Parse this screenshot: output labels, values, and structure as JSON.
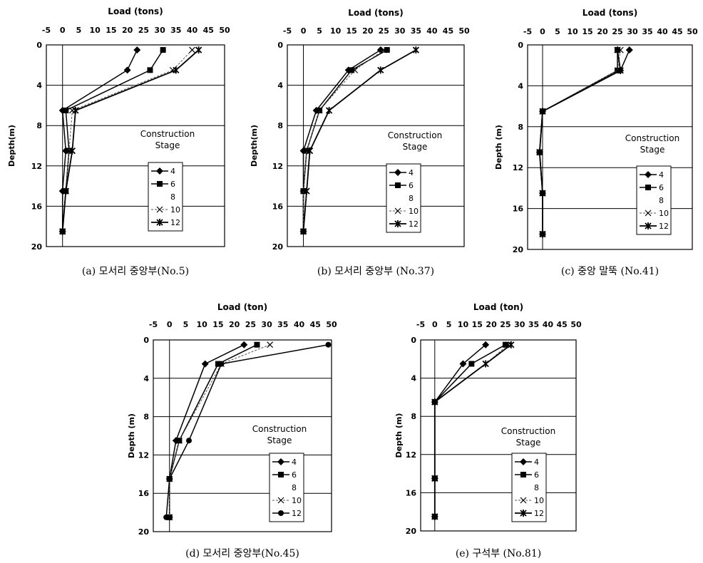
{
  "chart_data": [
    {
      "type": "line",
      "title": "Load (tons)",
      "xlabel": "Load (tons)",
      "ylabel": "Depth(m)",
      "caption": "(a) 모서리 중앙부(No.5)",
      "xlim": [
        -5,
        50
      ],
      "ylim": [
        0,
        20
      ],
      "y_inverted": true,
      "x_ticks": [
        -5,
        0,
        5,
        10,
        15,
        20,
        25,
        30,
        35,
        40,
        45,
        50
      ],
      "y_ticks": [
        0,
        4,
        8,
        12,
        16,
        20
      ],
      "grid": "horizontal",
      "legend_title": [
        "Construction",
        "Stage"
      ],
      "series": [
        {
          "name": "4",
          "marker": "diamond",
          "points": [
            [
              23,
              0.5
            ],
            [
              20,
              2.5
            ],
            [
              0,
              6.5
            ],
            [
              1,
              10.5
            ],
            [
              0,
              14.5
            ],
            [
              0,
              18.5
            ]
          ]
        },
        {
          "name": "6",
          "marker": "square",
          "points": [
            [
              31,
              0.5
            ],
            [
              27,
              2.5
            ],
            [
              1,
              6.5
            ],
            [
              2,
              10.5
            ],
            [
              1,
              14.5
            ],
            [
              0,
              18.5
            ]
          ]
        },
        {
          "name": "8",
          "marker": "none",
          "points": []
        },
        {
          "name": "10",
          "marker": "x",
          "points": [
            [
              40,
              0.5
            ],
            [
              34,
              2.5
            ],
            [
              3,
              6.5
            ],
            [
              2,
              10.5
            ],
            [
              1,
              14.5
            ],
            [
              0,
              18.5
            ]
          ]
        },
        {
          "name": "12",
          "marker": "star",
          "points": [
            [
              42,
              0.5
            ],
            [
              35,
              2.5
            ],
            [
              4,
              6.5
            ],
            [
              3,
              10.5
            ],
            [
              1,
              14.5
            ],
            [
              0,
              18.5
            ]
          ]
        }
      ]
    },
    {
      "type": "line",
      "title": "Load (tons)",
      "xlabel": "Load (tons)",
      "ylabel": "Depth(m)",
      "caption": "(b) 모서리 중앙부 (No.37)",
      "xlim": [
        -5,
        50
      ],
      "ylim": [
        0,
        20
      ],
      "y_inverted": true,
      "x_ticks": [
        -5,
        0,
        5,
        10,
        15,
        20,
        25,
        30,
        35,
        40,
        45,
        50
      ],
      "y_ticks": [
        0,
        4,
        8,
        12,
        16,
        20
      ],
      "grid": "horizontal",
      "legend_title": [
        "Construction",
        "Stage"
      ],
      "series": [
        {
          "name": "4",
          "marker": "diamond",
          "points": [
            [
              24,
              0.5
            ],
            [
              14,
              2.5
            ],
            [
              4,
              6.5
            ],
            [
              0,
              10.5
            ],
            [
              0,
              14.5
            ],
            [
              0,
              18.5
            ]
          ]
        },
        {
          "name": "6",
          "marker": "square",
          "points": [
            [
              26,
              0.5
            ],
            [
              15,
              2.5
            ],
            [
              5,
              6.5
            ],
            [
              1,
              10.5
            ],
            [
              0,
              14.5
            ],
            [
              0,
              18.5
            ]
          ]
        },
        {
          "name": "8",
          "marker": "none",
          "points": []
        },
        {
          "name": "10",
          "marker": "x",
          "points": [
            [
              25,
              0.5
            ],
            [
              16,
              2.5
            ],
            [
              5,
              6.5
            ],
            [
              1,
              10.5
            ],
            [
              0,
              14.5
            ],
            [
              0,
              18.5
            ]
          ]
        },
        {
          "name": "12",
          "marker": "star",
          "points": [
            [
              35,
              0.5
            ],
            [
              24,
              2.5
            ],
            [
              8,
              6.5
            ],
            [
              2,
              10.5
            ],
            [
              1,
              14.5
            ],
            [
              0,
              18.5
            ]
          ]
        }
      ]
    },
    {
      "type": "line",
      "title": "Load (tons)",
      "xlabel": "Load (tons)",
      "ylabel": "Depth (m)",
      "caption": "(c) 중앙 말뚝 (No.41)",
      "xlim": [
        -5,
        50
      ],
      "ylim": [
        0,
        20
      ],
      "y_inverted": true,
      "x_ticks": [
        -5,
        0,
        5,
        10,
        15,
        20,
        25,
        30,
        35,
        40,
        45,
        50
      ],
      "y_ticks": [
        0,
        4,
        8,
        12,
        16,
        20
      ],
      "grid": "horizontal",
      "legend_title": [
        "Construction",
        "Stage"
      ],
      "series": [
        {
          "name": "4",
          "marker": "diamond",
          "points": [
            [
              29,
              0.5
            ],
            [
              26,
              2.5
            ],
            [
              0,
              6.5
            ],
            [
              -1,
              10.5
            ],
            [
              0,
              14.5
            ],
            [
              0,
              18.5
            ]
          ]
        },
        {
          "name": "6",
          "marker": "square",
          "points": [
            [
              25,
              0.5
            ],
            [
              25,
              2.5
            ],
            [
              0,
              6.5
            ],
            [
              -1,
              10.5
            ],
            [
              0,
              14.5
            ],
            [
              0,
              18.5
            ]
          ]
        },
        {
          "name": "8",
          "marker": "none",
          "points": []
        },
        {
          "name": "10",
          "marker": "x",
          "points": [
            [
              26,
              0.5
            ],
            [
              25,
              2.5
            ],
            [
              0,
              6.5
            ],
            [
              -1,
              10.5
            ],
            [
              0,
              14.5
            ],
            [
              0,
              18.5
            ]
          ]
        },
        {
          "name": "12",
          "marker": "star",
          "points": [
            [
              25,
              0.5
            ],
            [
              26,
              2.5
            ],
            [
              0,
              6.5
            ],
            [
              -1,
              10.5
            ],
            [
              0,
              14.5
            ],
            [
              0,
              18.5
            ]
          ]
        }
      ]
    },
    {
      "type": "line",
      "title": "Load (ton)",
      "xlabel": "Load (ton)",
      "ylabel": "Depth (m)",
      "caption": "(d) 모서리 중앙부(No.45)",
      "xlim": [
        -5,
        50
      ],
      "ylim": [
        0,
        20
      ],
      "y_inverted": true,
      "x_ticks": [
        -5,
        0,
        5,
        10,
        15,
        20,
        25,
        30,
        35,
        40,
        45,
        50
      ],
      "y_ticks": [
        0,
        4,
        8,
        12,
        16,
        20
      ],
      "grid": "horizontal",
      "legend_title": [
        "Construction",
        "Stage"
      ],
      "series": [
        {
          "name": "4",
          "marker": "diamond",
          "points": [
            [
              23,
              0.5
            ],
            [
              11,
              2.5
            ],
            [
              2,
              10.5
            ],
            [
              0,
              14.5
            ],
            [
              0,
              18.5
            ]
          ]
        },
        {
          "name": "6",
          "marker": "square",
          "points": [
            [
              27,
              0.5
            ],
            [
              15,
              2.5
            ],
            [
              3,
              10.5
            ],
            [
              0,
              14.5
            ],
            [
              0,
              18.5
            ]
          ]
        },
        {
          "name": "8",
          "marker": "none",
          "points": []
        },
        {
          "name": "10",
          "marker": "x",
          "points": [
            [
              31,
              0.5
            ],
            [
              16,
              2.5
            ],
            [
              3,
              10.5
            ],
            [
              0,
              14.5
            ],
            [
              0,
              18.5
            ]
          ]
        },
        {
          "name": "12",
          "marker": "circle",
          "points": [
            [
              49,
              0.5
            ],
            [
              16,
              2.5
            ],
            [
              6,
              10.5
            ],
            [
              0,
              14.5
            ],
            [
              -1,
              18.5
            ]
          ]
        }
      ]
    },
    {
      "type": "line",
      "title": "Load (ton)",
      "xlabel": "Load (ton)",
      "ylabel": "Depth (m)",
      "caption": "(e) 구석부 (No.81)",
      "xlim": [
        -5,
        50
      ],
      "ylim": [
        0,
        20
      ],
      "y_inverted": true,
      "x_ticks": [
        -5,
        0,
        5,
        10,
        15,
        20,
        25,
        30,
        35,
        40,
        45,
        50
      ],
      "y_ticks": [
        0,
        4,
        8,
        12,
        16,
        20
      ],
      "grid": "horizontal",
      "legend_title": [
        "Construction",
        "Stage"
      ],
      "series": [
        {
          "name": "4",
          "marker": "diamond",
          "points": [
            [
              18,
              0.5
            ],
            [
              10,
              2.5
            ],
            [
              0,
              6.5
            ],
            [
              0,
              14.5
            ],
            [
              0,
              18.5
            ]
          ]
        },
        {
          "name": "6",
          "marker": "square",
          "points": [
            [
              25,
              0.5
            ],
            [
              13,
              2.5
            ],
            [
              0,
              6.5
            ],
            [
              0,
              14.5
            ],
            [
              0,
              18.5
            ]
          ]
        },
        {
          "name": "8",
          "marker": "none",
          "points": []
        },
        {
          "name": "10",
          "marker": "x",
          "points": [
            [
              26,
              0.5
            ],
            [
              18,
              2.5
            ],
            [
              0,
              6.5
            ],
            [
              0,
              14.5
            ],
            [
              0,
              18.5
            ]
          ]
        },
        {
          "name": "12",
          "marker": "star",
          "points": [
            [
              27,
              0.5
            ],
            [
              18,
              2.5
            ],
            [
              0,
              6.5
            ],
            [
              0,
              14.5
            ],
            [
              0,
              18.5
            ]
          ]
        }
      ]
    }
  ]
}
